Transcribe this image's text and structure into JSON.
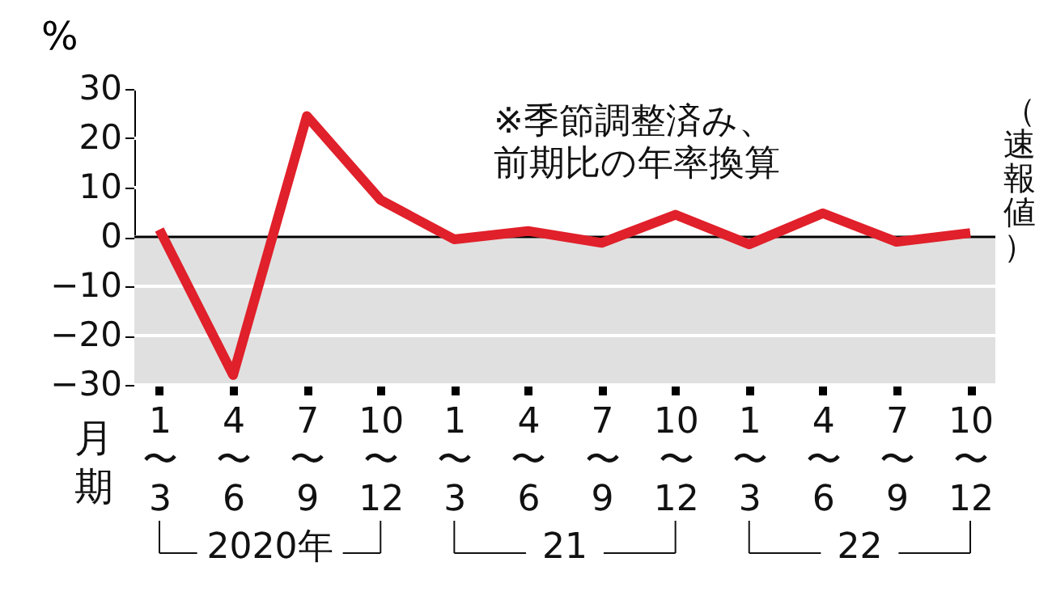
{
  "chart_data": {
    "type": "line",
    "ylabel": "%",
    "xlabel": "月期",
    "categories": [
      "1\n〜\n3",
      "4\n〜\n6",
      "7\n〜\n9",
      "10\n〜\n12",
      "1\n〜\n3",
      "4\n〜\n6",
      "7\n〜\n9",
      "10\n〜\n12",
      "1\n〜\n3",
      "4\n〜\n6",
      "7\n〜\n9",
      "10\n〜\n12"
    ],
    "series": [
      {
        "color": "#e0202a",
        "values": [
          1.5,
          -28,
          24.5,
          7.5,
          -0.5,
          1.2,
          -1.2,
          4.5,
          -1.5,
          4.8,
          -1,
          0.8
        ]
      }
    ],
    "ylim": [
      -30,
      30
    ],
    "yticks": [
      -30,
      -20,
      -10,
      0,
      10,
      20,
      30
    ],
    "grid": "y",
    "marker": "none",
    "line_style": "solid",
    "bands": [
      {
        "axis": "y",
        "from": -30,
        "to": 0,
        "color": "#e0e0e0"
      }
    ],
    "ref_lines": [
      {
        "axis": "y",
        "value": 0,
        "color": "#000000"
      }
    ],
    "annotations": [
      "※季節調整済み、前期比の年率換算",
      "2020年",
      "21",
      "22",
      "（速報値）"
    ]
  }
}
